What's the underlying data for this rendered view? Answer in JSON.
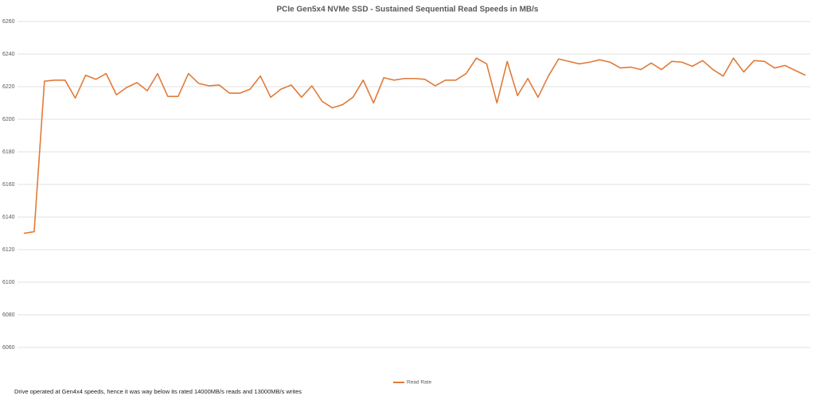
{
  "chart_data": {
    "type": "line",
    "title": "PCIe Gen5x4 NVMe SSD - Sustained Sequential Read Speeds in MB/s",
    "note": "Drive operated at Gen4x4 speeds, hence it was way below its rated 14000MB/s reads and 13000MB/s writes",
    "ylim": [
      6060,
      6260
    ],
    "yticks": [
      6060,
      6080,
      6100,
      6120,
      6140,
      6160,
      6180,
      6200,
      6220,
      6240,
      6260
    ],
    "grid": true,
    "legend": "bottom",
    "series": [
      {
        "name": "Read Rate",
        "color": "#e07b39",
        "values": [
          6130,
          6131,
          6223.4,
          6224,
          6224,
          6213,
          6227,
          6224.5,
          6228,
          6215,
          6219.5,
          6222.5,
          6217.5,
          6228,
          6214,
          6214,
          6228,
          6222,
          6220.5,
          6221,
          6216,
          6216,
          6218.5,
          6226.5,
          6213.5,
          6218.5,
          6221,
          6213.5,
          6220.5,
          6211,
          6207,
          6209,
          6213.5,
          6224,
          6210,
          6225.5,
          6224,
          6225,
          6225,
          6224.5,
          6220.5,
          6224,
          6224,
          6228,
          6237.5,
          6234,
          6210,
          6235.5,
          6214.5,
          6225,
          6213.5,
          6226.5,
          6237,
          6235.5,
          6234,
          6235,
          6236.5,
          6235,
          6231.5,
          6232,
          6230.5,
          6234.5,
          6230.5,
          6235.5,
          6235,
          6232.5,
          6236,
          6230.5,
          6226.5,
          6237.5,
          6229,
          6236,
          6235.5,
          6231.5,
          6233,
          6230,
          6227
        ]
      }
    ]
  }
}
